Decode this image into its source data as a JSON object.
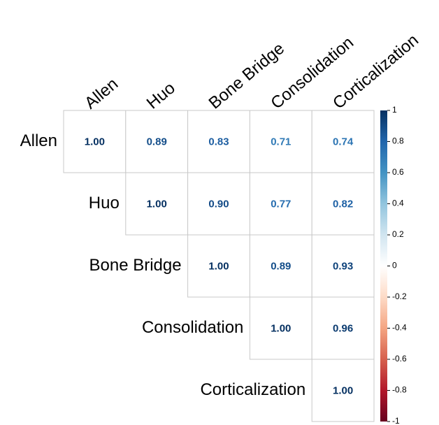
{
  "chart_data": {
    "type": "corrplot",
    "variables": [
      "Allen",
      "Huo",
      "Bone Bridge",
      "Consolidation",
      "Corticalization"
    ],
    "values": [
      [
        1.0,
        0.89,
        0.83,
        0.71,
        0.74
      ],
      [
        null,
        1.0,
        0.9,
        0.77,
        0.82
      ],
      [
        null,
        null,
        1.0,
        0.89,
        0.93
      ],
      [
        null,
        null,
        null,
        1.0,
        0.96
      ],
      [
        null,
        null,
        null,
        null,
        1.0
      ]
    ],
    "value_labels": [
      [
        "1.00",
        "0.89",
        "0.83",
        "0.71",
        "0.74"
      ],
      [
        null,
        "1.00",
        "0.90",
        "0.77",
        "0.82"
      ],
      [
        null,
        null,
        "1.00",
        "0.89",
        "0.93"
      ],
      [
        null,
        null,
        null,
        "1.00",
        "0.96"
      ],
      [
        null,
        null,
        null,
        null,
        "1.00"
      ]
    ],
    "colorscale": [
      "#67001F",
      "#B2182B",
      "#D6604D",
      "#F4A582",
      "#FDDBC7",
      "#FFFFFF",
      "#D1E5F0",
      "#92C5DE",
      "#4393C3",
      "#2166AC",
      "#053061"
    ],
    "clim": [
      -1,
      1
    ],
    "cticks": [
      1,
      0.8,
      0.6,
      0.4,
      0.2,
      0,
      -0.2,
      -0.4,
      -0.6,
      -0.8,
      -1
    ]
  }
}
